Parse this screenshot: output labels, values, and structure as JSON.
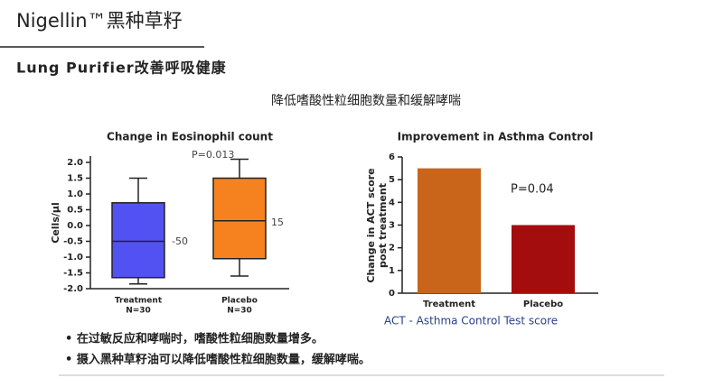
{
  "header": {
    "title": "Nigellin™黑种草籽",
    "subtitle": "Lung Purifier改善呼吸健康",
    "heading": "降低嗜酸性粒细胞数量和缓解哮喘"
  },
  "chart_data": [
    {
      "type": "box",
      "title": "Change in Eosinophil count",
      "ylabel": "Cells/µl",
      "categories": [
        "Treatment",
        "Placebo"
      ],
      "n_labels": [
        "N=30",
        "N=30"
      ],
      "boxes": [
        {
          "low": -1.85,
          "q1": -1.65,
          "median": -0.5,
          "q3": 0.72,
          "high": 1.5,
          "color": "#5252f2"
        },
        {
          "low": -1.6,
          "q1": -1.05,
          "median": 0.15,
          "q3": 1.5,
          "high": 2.1,
          "color": "#f5821f"
        }
      ],
      "annotations": [
        "P=0.013",
        "-50",
        "15"
      ],
      "ylim": [
        -2,
        2.2
      ],
      "yticks": [
        {
          "value": 2,
          "label": "2.0"
        },
        1.5,
        {
          "value": 1,
          "label": "1.0"
        },
        0.5,
        {
          "value": 0,
          "label": "0.0"
        },
        -0.5,
        {
          "value": -1,
          "label": "-1.0"
        },
        -1.5,
        {
          "value": -2,
          "label": "-2.0"
        }
      ]
    },
    {
      "type": "bar",
      "title": "Improvement in Asthma Control",
      "ylabel": [
        "Change in ACT score",
        "post treatment"
      ],
      "categories": [
        "Treatment",
        "Placebo"
      ],
      "values": [
        5.5,
        3.0
      ],
      "colors": [
        "#c8651b",
        "#a30d0d"
      ],
      "annotations": [
        "P=0.04"
      ],
      "caption": "ACT - Asthma Control Test score",
      "ylim": [
        0,
        6
      ],
      "yticks": [
        0,
        1,
        2,
        3,
        4,
        5,
        6
      ]
    }
  ],
  "bullets": [
    "• 在过敏反应和哮喘时，嗜酸性粒细胞数量增多。",
    "• 摄入黑种草籽油可以降低嗜酸性粒细胞数量，缓解哮喘。"
  ]
}
